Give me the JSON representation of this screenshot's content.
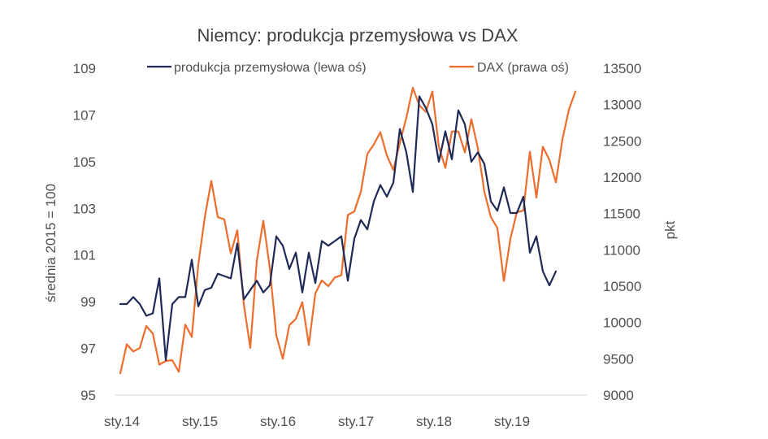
{
  "chart_data": {
    "type": "line",
    "title": "Niemcy: produkcja przemysłowa vs DAX",
    "ylabel_left": "średnia 2015 = 100",
    "ylabel_right": "pkt",
    "ylim_left": [
      95,
      109
    ],
    "ylim_right": [
      9000,
      13500
    ],
    "yticks_left": [
      95,
      97,
      99,
      101,
      103,
      105,
      107,
      109
    ],
    "yticks_right": [
      9000,
      9500,
      10000,
      10500,
      11000,
      11500,
      12000,
      12500,
      13000,
      13500
    ],
    "xtick_labels": [
      "sty.14",
      "sty.15",
      "sty.16",
      "sty.17",
      "sty.18",
      "sty.19"
    ],
    "x_start": "2014-01",
    "grid": false,
    "legend_position": "top",
    "series": [
      {
        "name": "produkcja przemysłowa (lewa oś)",
        "axis": "left",
        "color": "#1f2a56",
        "values": [
          98.9,
          98.9,
          99.2,
          98.9,
          98.4,
          98.5,
          100.0,
          96.5,
          98.9,
          99.2,
          99.2,
          100.8,
          98.8,
          99.5,
          99.6,
          100.2,
          100.1,
          100.0,
          101.5,
          99.1,
          99.5,
          99.9,
          99.4,
          99.7,
          101.8,
          101.4,
          100.4,
          101.1,
          99.4,
          101.1,
          99.8,
          101.6,
          101.4,
          101.6,
          101.8,
          99.9,
          101.7,
          102.5,
          102.1,
          103.3,
          104.0,
          103.5,
          104.1,
          106.4,
          105.4,
          103.7,
          107.8,
          107.3,
          106.6,
          105.0,
          106.3,
          105.1,
          107.2,
          106.6,
          105.0,
          105.4,
          104.9,
          103.3,
          102.9,
          103.9,
          102.8,
          102.8,
          103.5,
          101.1,
          101.8,
          100.3,
          99.7,
          100.3
        ]
      },
      {
        "name": "DAX (prawa oś)",
        "axis": "right",
        "color": "#ed6d2c",
        "values": [
          9300,
          9700,
          9600,
          9650,
          9950,
          9850,
          9420,
          9470,
          9480,
          9320,
          9970,
          9800,
          10800,
          11450,
          11950,
          11450,
          11420,
          10950,
          11270,
          10250,
          9650,
          10850,
          11400,
          10750,
          9820,
          9500,
          9960,
          10050,
          10280,
          9690,
          10400,
          10580,
          10500,
          10620,
          10650,
          11480,
          11530,
          11800,
          12320,
          12450,
          12620,
          12300,
          12100,
          12470,
          12820,
          13230,
          12990,
          12900,
          13180,
          12420,
          12130,
          12630,
          12630,
          12340,
          12800,
          12400,
          11800,
          11450,
          11300,
          10570,
          11150,
          11520,
          11540,
          12350,
          11720,
          12420,
          12240,
          11930,
          12520,
          12930,
          13180
        ]
      }
    ]
  }
}
